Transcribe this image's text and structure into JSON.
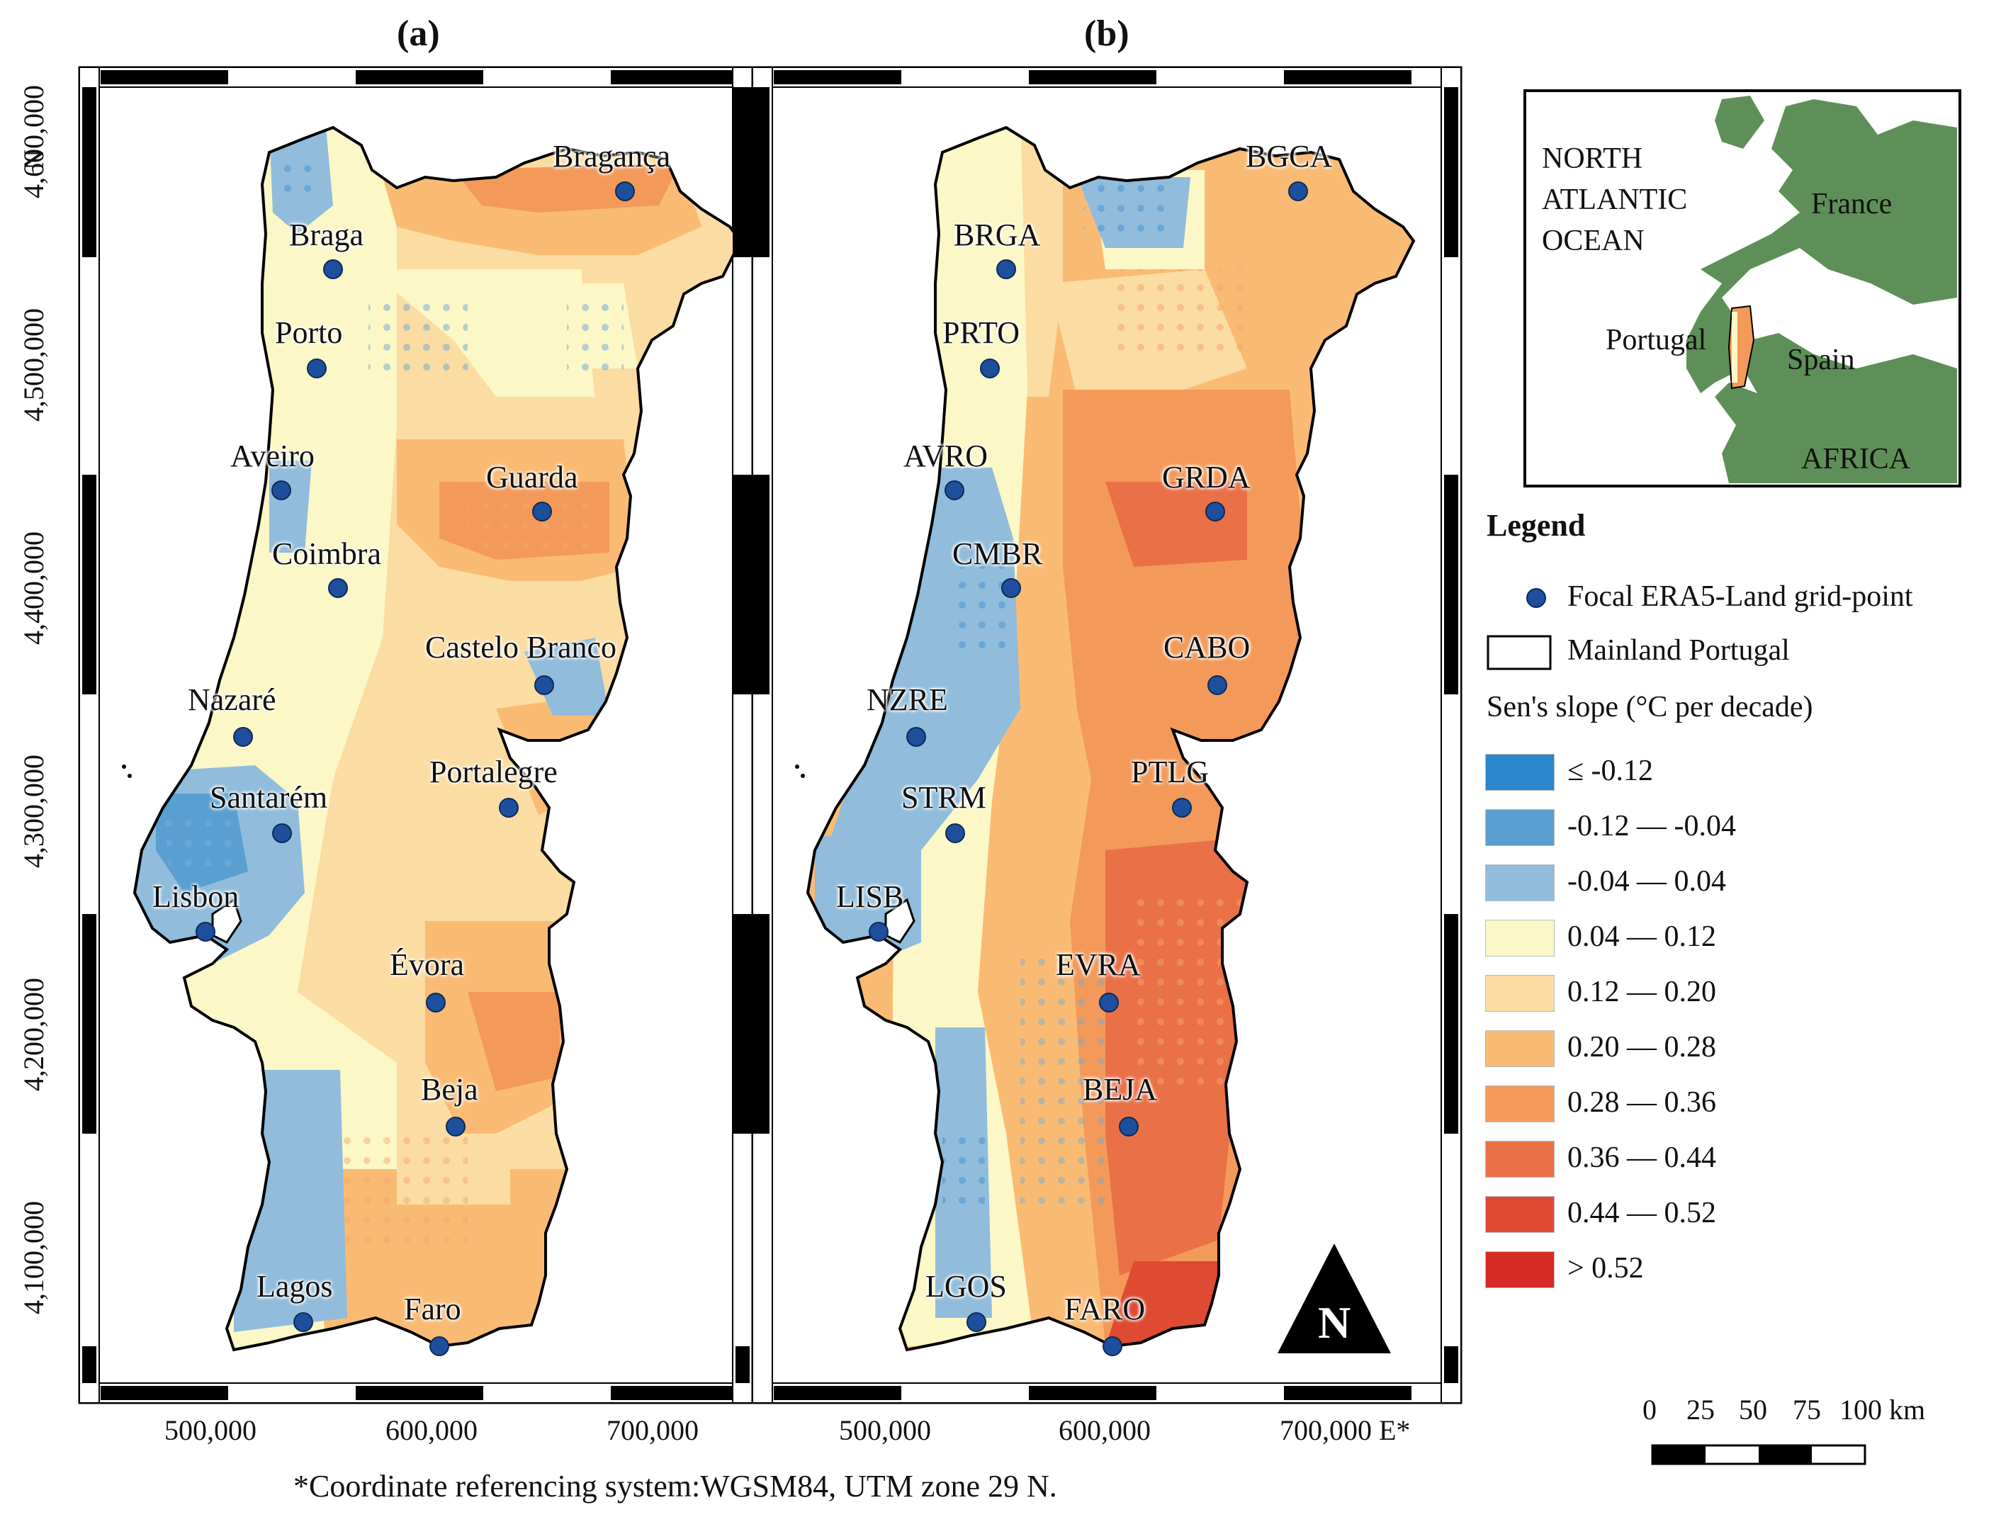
{
  "panels": [
    {
      "label": "(a)",
      "cities": [
        "Bragança",
        "Braga",
        "Porto",
        "Aveiro",
        "Guarda",
        "Coimbra",
        "Castelo Branco",
        "Nazaré",
        "Portalegre",
        "Santarém",
        "Lisbon",
        "Évora",
        "Beja",
        "Lagos",
        "Faro"
      ]
    },
    {
      "label": "(b)",
      "cities": [
        "BGCA",
        "BRGA",
        "PRTO",
        "AVRO",
        "GRDA",
        "CMBR",
        "CABO",
        "NZRE",
        "PTLG",
        "STRM",
        "LISB",
        "EVRA",
        "BEJA",
        "LGOS",
        "FARO"
      ]
    }
  ],
  "axes": {
    "y_label": "N",
    "y_ticks": [
      "4,100,000",
      "4,200,000",
      "4,300,000",
      "4,400,000",
      "4,500,000",
      "4,600,000"
    ],
    "x_ticks_a": [
      "500,000",
      "600,000",
      "700,000"
    ],
    "x_ticks_b": [
      "500,000",
      "600,000",
      "700,000 E*"
    ]
  },
  "inset": {
    "ocean_label": [
      "NORTH",
      "ATLANTIC",
      "OCEAN"
    ],
    "france": "France",
    "portugal": "Portugal",
    "spain": "Spain",
    "africa": "AFRICA"
  },
  "legend": {
    "title": "Legend",
    "point_label": "Focal ERA5-Land grid-point",
    "outline_label": "Mainland Portugal",
    "scale_title": "Sen's slope (°C per decade)",
    "classes": [
      {
        "label": "≤ -0.12",
        "color": "#2b86cc"
      },
      {
        "label": "-0.12 — -0.04",
        "color": "#5a9fd1"
      },
      {
        "label": "-0.04 — 0.04",
        "color": "#91bcdc"
      },
      {
        "label": "0.04 — 0.12",
        "color": "#fbf7c6"
      },
      {
        "label": "0.12 — 0.20",
        "color": "#fbdca2"
      },
      {
        "label": "0.20 — 0.28",
        "color": "#f9bb74"
      },
      {
        "label": "0.28 — 0.36",
        "color": "#f39a5a"
      },
      {
        "label": "0.36 — 0.44",
        "color": "#ea7047"
      },
      {
        "label": "0.44 — 0.52",
        "color": "#df4a33"
      },
      {
        "label": "> 0.52",
        "color": "#d62a25"
      }
    ]
  },
  "scalebar": {
    "labels": [
      "0",
      "25",
      "50",
      "75",
      "100 km"
    ]
  },
  "north_arrow": "N",
  "footer": "*Coordinate referencing system:WGSM84, UTM zone 29 N."
}
